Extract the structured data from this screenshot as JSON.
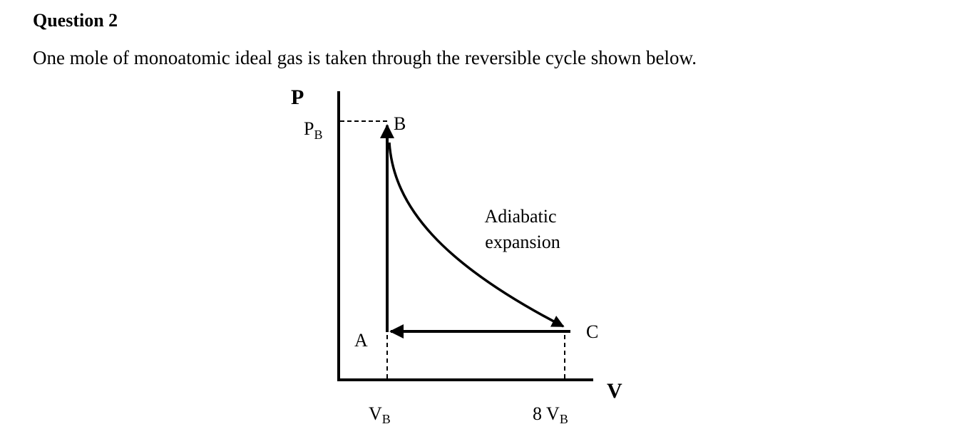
{
  "header": {
    "title": "Question 2",
    "text": "One mole of monoatomic ideal gas is taken through the reversible cycle shown below."
  },
  "diagram": {
    "y_axis": "P",
    "x_axis": "V",
    "p_level": {
      "main": "P",
      "sub": "B"
    },
    "points": {
      "A": "A",
      "B": "B",
      "C": "C"
    },
    "process_label": [
      "Adiabatic",
      "expansion"
    ],
    "v_levels": [
      {
        "main": "V",
        "sub": "B"
      },
      {
        "main": "8 V",
        "sub": "B"
      }
    ]
  }
}
